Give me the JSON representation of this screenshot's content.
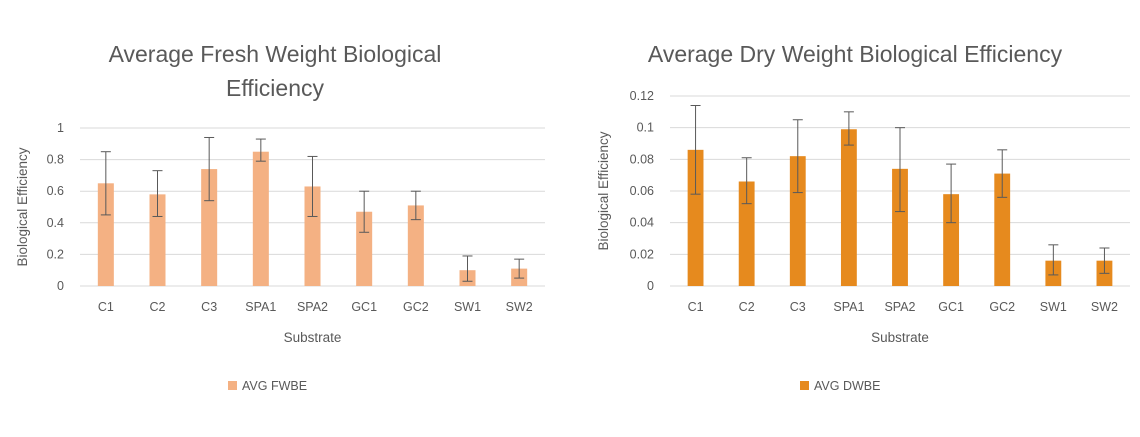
{
  "chart_data": [
    {
      "type": "bar",
      "title_lines": [
        "Average Fresh Weight Biological",
        "Efficiency"
      ],
      "xlabel": "Substrate",
      "ylabel": "Biological Efficiency",
      "categories": [
        "C1",
        "C2",
        "C3",
        "SPA1",
        "SPA2",
        "GC1",
        "GC2",
        "SW1",
        "SW2"
      ],
      "series": [
        {
          "name": "AVG FWBE",
          "color": "#f4b183",
          "values": [
            0.65,
            0.58,
            0.74,
            0.85,
            0.63,
            0.47,
            0.51,
            0.1,
            0.11
          ],
          "error_low": [
            0.45,
            0.44,
            0.54,
            0.79,
            0.44,
            0.34,
            0.42,
            0.03,
            0.05
          ],
          "error_high": [
            0.85,
            0.73,
            0.94,
            0.93,
            0.82,
            0.6,
            0.6,
            0.19,
            0.17
          ]
        }
      ],
      "ylim": [
        0,
        1
      ],
      "yticks": [
        0,
        0.2,
        0.4,
        0.6,
        0.8,
        1
      ],
      "ytick_labels": [
        "0",
        "0.2",
        "0.4",
        "0.6",
        "0.8",
        "1"
      ],
      "grid": true,
      "legend": "bottom"
    },
    {
      "type": "bar",
      "title_lines": [
        "Average Dry Weight Biological Efficiency"
      ],
      "xlabel": "Substrate",
      "ylabel": "Biological Efficiency",
      "categories": [
        "C1",
        "C2",
        "C3",
        "SPA1",
        "SPA2",
        "GC1",
        "GC2",
        "SW1",
        "SW2"
      ],
      "series": [
        {
          "name": "AVG DWBE",
          "color": "#e68a1e",
          "values": [
            0.086,
            0.066,
            0.082,
            0.099,
            0.074,
            0.058,
            0.071,
            0.016,
            0.016
          ],
          "error_low": [
            0.058,
            0.052,
            0.059,
            0.089,
            0.047,
            0.04,
            0.056,
            0.007,
            0.008
          ],
          "error_high": [
            0.114,
            0.081,
            0.105,
            0.11,
            0.1,
            0.077,
            0.086,
            0.026,
            0.024
          ]
        }
      ],
      "ylim": [
        0,
        0.12
      ],
      "yticks": [
        0,
        0.02,
        0.04,
        0.06,
        0.08,
        0.1,
        0.12
      ],
      "ytick_labels": [
        "0",
        "0.02",
        "0.04",
        "0.06",
        "0.08",
        "0.1",
        "0.12"
      ],
      "grid": true,
      "legend": "bottom"
    }
  ]
}
